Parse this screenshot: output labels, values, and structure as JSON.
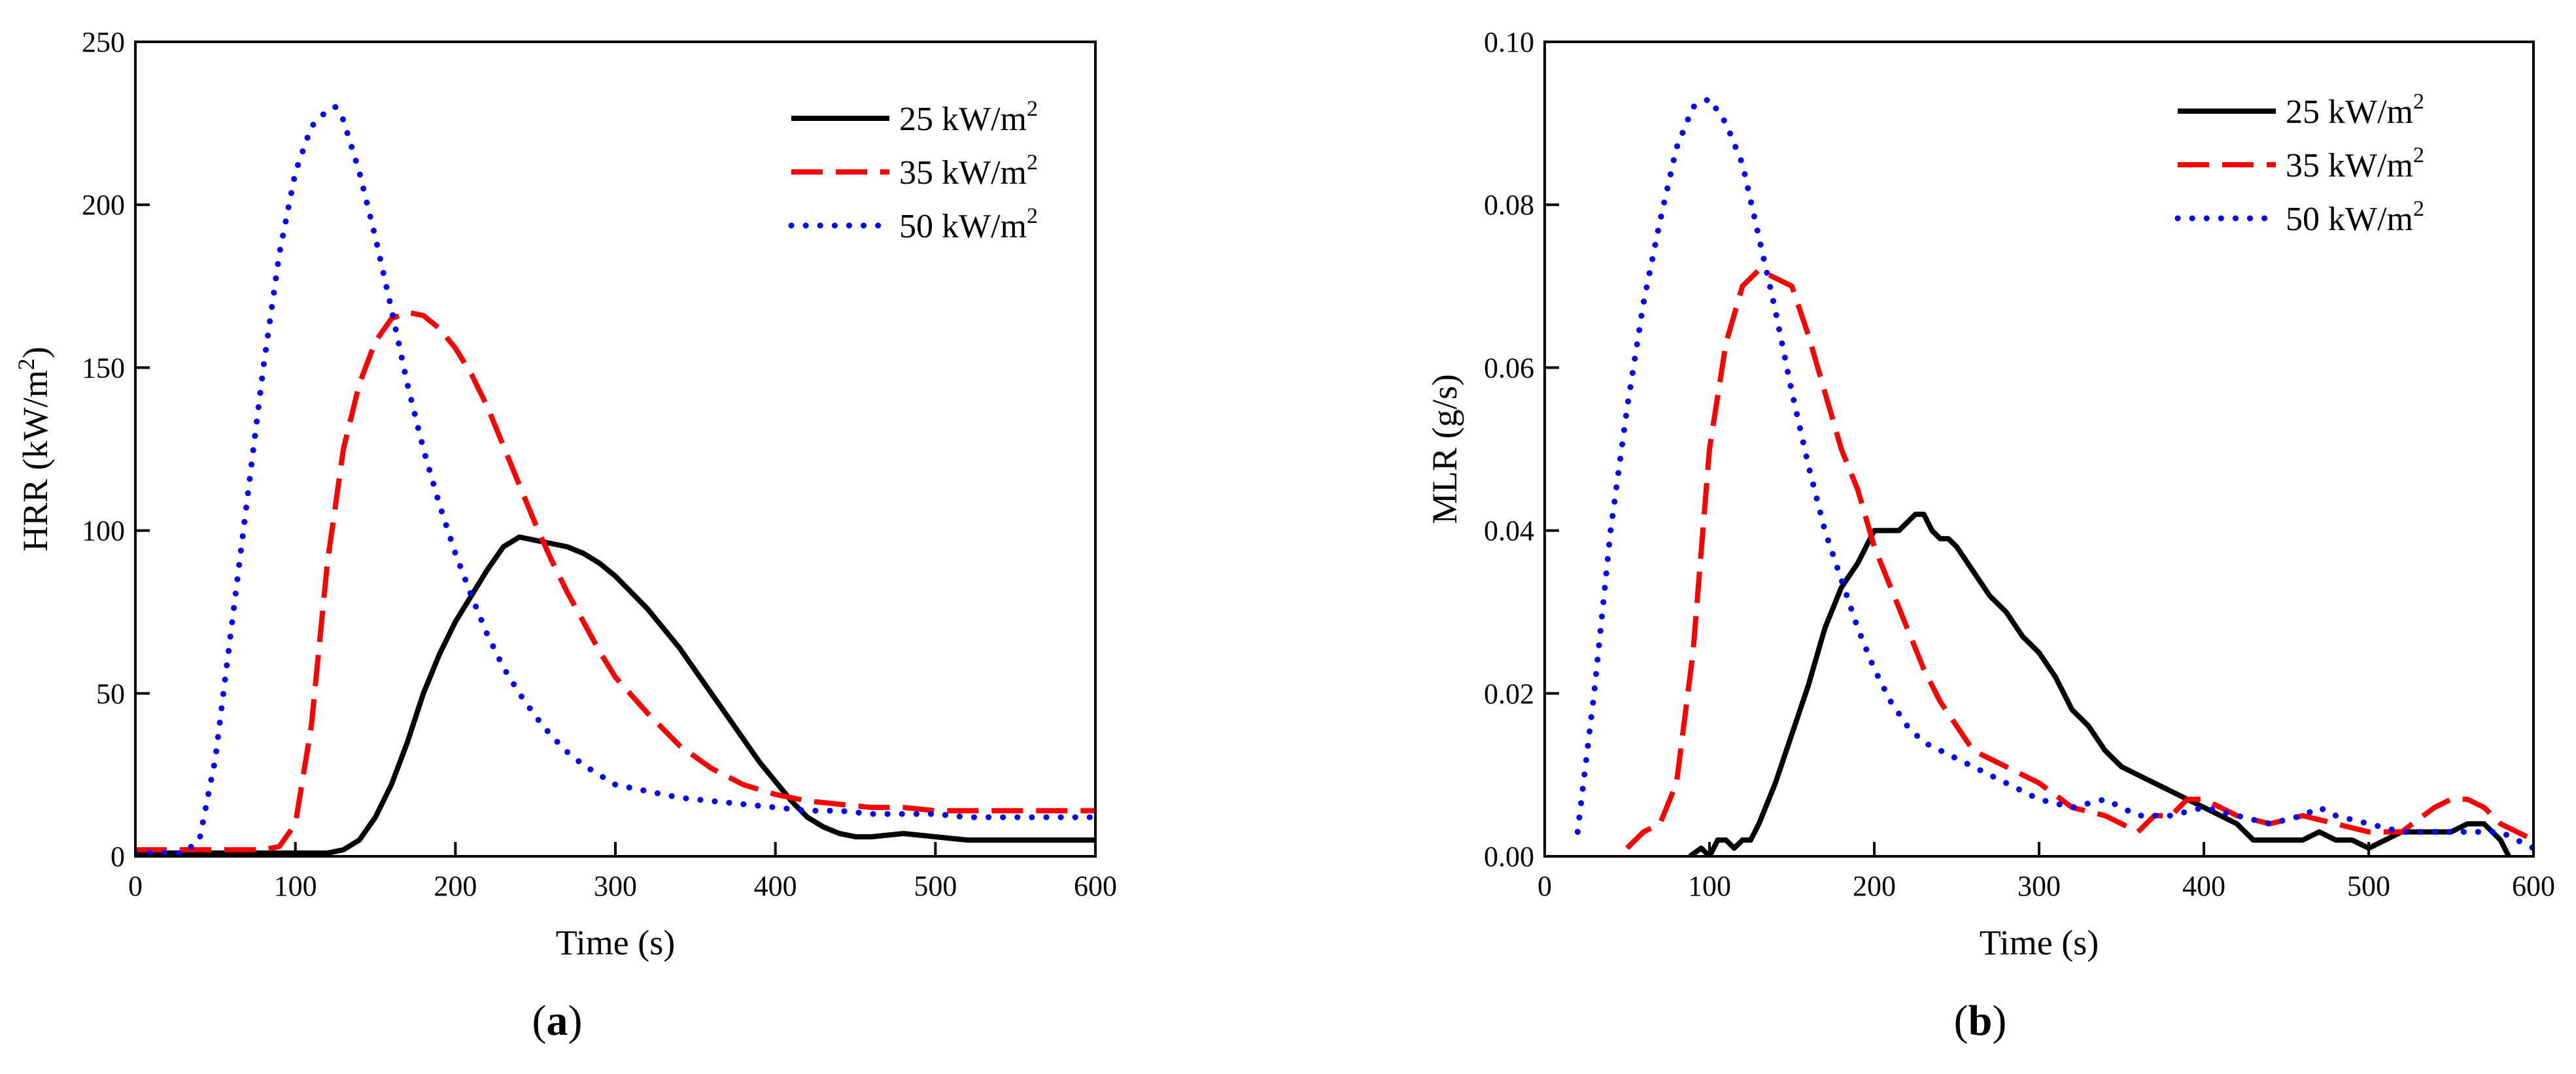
{
  "chart_data": [
    {
      "type": "line",
      "panel_label": {
        "open": "(",
        "letter": "a",
        "close": ")"
      },
      "xlabel": "Time (s)",
      "ylabel": {
        "prefix": "HRR (kW/m",
        "sup": "2",
        "suffix": ")"
      },
      "xlim": [
        0,
        600
      ],
      "ylim": [
        0,
        250
      ],
      "xticks": [
        0,
        100,
        200,
        300,
        400,
        500,
        600
      ],
      "yticks": [
        0,
        50,
        100,
        150,
        200,
        250
      ],
      "legend_position": "top-right",
      "series": [
        {
          "name": "25 kW/m2",
          "label_main": "25 kW/m",
          "label_sup": "2",
          "color": "#000000",
          "style": "solid",
          "x": [
            0,
            100,
            120,
            130,
            140,
            150,
            160,
            170,
            180,
            190,
            200,
            210,
            220,
            230,
            240,
            250,
            260,
            270,
            280,
            290,
            300,
            310,
            320,
            330,
            340,
            350,
            360,
            370,
            380,
            390,
            400,
            410,
            420,
            430,
            440,
            450,
            460,
            480,
            500,
            520,
            540,
            560,
            580,
            600
          ],
          "y": [
            1,
            1,
            1,
            2,
            5,
            12,
            22,
            35,
            50,
            62,
            72,
            80,
            88,
            95,
            98,
            97,
            96,
            95,
            93,
            90,
            86,
            81,
            76,
            70,
            64,
            57,
            50,
            43,
            36,
            29,
            23,
            17,
            12,
            9,
            7,
            6,
            6,
            7,
            6,
            5,
            5,
            5,
            5,
            5
          ]
        },
        {
          "name": "35 kW/m2",
          "label_main": "35 kW/m",
          "label_sup": "2",
          "color": "#ff0000",
          "style": "dashed",
          "x": [
            0,
            60,
            80,
            90,
            100,
            110,
            120,
            130,
            140,
            150,
            160,
            170,
            180,
            190,
            200,
            210,
            220,
            230,
            240,
            250,
            260,
            270,
            280,
            290,
            300,
            320,
            340,
            360,
            380,
            400,
            420,
            440,
            460,
            480,
            500,
            520,
            540,
            560,
            580,
            600
          ],
          "y": [
            2,
            2,
            2,
            3,
            10,
            40,
            90,
            125,
            145,
            158,
            165,
            167,
            166,
            162,
            156,
            148,
            138,
            126,
            114,
            102,
            91,
            81,
            72,
            63,
            55,
            44,
            34,
            27,
            22,
            19,
            17,
            16,
            15,
            15,
            14,
            14,
            14,
            14,
            14,
            14
          ]
        },
        {
          "name": "50 kW/m2",
          "label_main": "50 kW/m",
          "label_sup": "2",
          "color": "#0000ff",
          "style": "dotted",
          "x": [
            0,
            30,
            40,
            50,
            60,
            70,
            80,
            90,
            100,
            110,
            120,
            125,
            130,
            140,
            150,
            160,
            170,
            180,
            190,
            200,
            210,
            220,
            230,
            240,
            250,
            260,
            270,
            280,
            290,
            300,
            320,
            340,
            360,
            380,
            400,
            420,
            440,
            460,
            480,
            500,
            520,
            540,
            560,
            580,
            600
          ],
          "y": [
            1,
            1,
            5,
            30,
            70,
            110,
            150,
            185,
            210,
            224,
            229,
            230,
            226,
            210,
            190,
            168,
            145,
            125,
            108,
            93,
            80,
            68,
            58,
            50,
            43,
            37,
            32,
            28,
            25,
            22,
            20,
            18,
            17,
            16,
            15,
            14,
            14,
            13,
            13,
            13,
            12,
            12,
            12,
            12,
            12
          ]
        }
      ]
    },
    {
      "type": "line",
      "panel_label": {
        "open": "(",
        "letter": "b",
        "close": ")"
      },
      "xlabel": "Time (s)",
      "ylabel": {
        "prefix": "MLR (g/s)",
        "sup": "",
        "suffix": ""
      },
      "xlim": [
        0,
        600
      ],
      "ylim": [
        0,
        0.1
      ],
      "xticks": [
        0,
        100,
        200,
        300,
        400,
        500,
        600
      ],
      "yticks": [
        0,
        0.02,
        0.04,
        0.06,
        0.08,
        0.1
      ],
      "ytick_labels": [
        "0.00",
        "0.02",
        "0.04",
        "0.06",
        "0.08",
        "0.10"
      ],
      "legend_position": "top-right",
      "series": [
        {
          "name": "25 kW/m2",
          "label_main": "25 kW/m",
          "label_sup": "2",
          "color": "#000000",
          "style": "solid",
          "x": [
            88,
            95,
            100,
            105,
            110,
            115,
            120,
            125,
            130,
            140,
            150,
            160,
            170,
            180,
            190,
            200,
            205,
            210,
            215,
            220,
            225,
            230,
            235,
            240,
            245,
            250,
            260,
            270,
            280,
            290,
            300,
            310,
            320,
            330,
            340,
            350,
            360,
            370,
            380,
            390,
            400,
            410,
            420,
            430,
            440,
            450,
            460,
            470,
            480,
            490,
            500,
            510,
            520,
            530,
            540,
            550,
            560,
            570,
            580,
            585
          ],
          "y": [
            0.0,
            0.001,
            0.0,
            0.002,
            0.002,
            0.001,
            0.002,
            0.002,
            0.004,
            0.009,
            0.015,
            0.021,
            0.028,
            0.033,
            0.036,
            0.04,
            0.04,
            0.04,
            0.04,
            0.041,
            0.042,
            0.042,
            0.04,
            0.039,
            0.039,
            0.038,
            0.035,
            0.032,
            0.03,
            0.027,
            0.025,
            0.022,
            0.018,
            0.016,
            0.013,
            0.011,
            0.01,
            0.009,
            0.008,
            0.007,
            0.006,
            0.005,
            0.004,
            0.002,
            0.002,
            0.002,
            0.002,
            0.003,
            0.002,
            0.002,
            0.001,
            0.002,
            0.003,
            0.003,
            0.003,
            0.003,
            0.004,
            0.004,
            0.002,
            0.0
          ]
        },
        {
          "name": "35 kW/m2",
          "label_main": "35 kW/m",
          "label_sup": "2",
          "color": "#ff0000",
          "style": "dashed",
          "x": [
            50,
            60,
            70,
            80,
            90,
            100,
            110,
            120,
            130,
            140,
            150,
            160,
            170,
            180,
            190,
            200,
            210,
            220,
            230,
            240,
            250,
            260,
            270,
            280,
            290,
            300,
            320,
            340,
            360,
            370,
            380,
            390,
            400,
            420,
            440,
            460,
            480,
            500,
            520,
            540,
            550,
            560,
            570,
            580,
            590,
            600
          ],
          "y": [
            0.001,
            0.003,
            0.004,
            0.009,
            0.025,
            0.05,
            0.063,
            0.07,
            0.072,
            0.071,
            0.07,
            0.064,
            0.057,
            0.05,
            0.045,
            0.038,
            0.033,
            0.028,
            0.023,
            0.019,
            0.016,
            0.013,
            0.012,
            0.011,
            0.01,
            0.009,
            0.006,
            0.005,
            0.003,
            0.005,
            0.005,
            0.007,
            0.007,
            0.005,
            0.004,
            0.005,
            0.004,
            0.003,
            0.003,
            0.006,
            0.007,
            0.007,
            0.006,
            0.004,
            0.003,
            0.002
          ]
        },
        {
          "name": "50 kW/m2",
          "label_main": "50 kW/m",
          "label_sup": "2",
          "color": "#0000ff",
          "style": "dotted",
          "x": [
            20,
            30,
            40,
            50,
            60,
            70,
            80,
            90,
            100,
            110,
            120,
            130,
            140,
            150,
            160,
            170,
            180,
            190,
            200,
            210,
            220,
            230,
            240,
            250,
            260,
            270,
            280,
            290,
            300,
            320,
            340,
            360,
            380,
            400,
            420,
            440,
            460,
            470,
            480,
            500,
            520,
            540,
            560,
            580,
            600
          ],
          "y": [
            0.003,
            0.02,
            0.04,
            0.055,
            0.068,
            0.078,
            0.087,
            0.092,
            0.093,
            0.09,
            0.085,
            0.076,
            0.067,
            0.057,
            0.048,
            0.04,
            0.034,
            0.028,
            0.023,
            0.019,
            0.016,
            0.014,
            0.013,
            0.012,
            0.011,
            0.01,
            0.009,
            0.008,
            0.007,
            0.006,
            0.007,
            0.005,
            0.005,
            0.006,
            0.005,
            0.004,
            0.005,
            0.006,
            0.005,
            0.004,
            0.003,
            0.003,
            0.003,
            0.003,
            0.001
          ]
        }
      ]
    }
  ]
}
